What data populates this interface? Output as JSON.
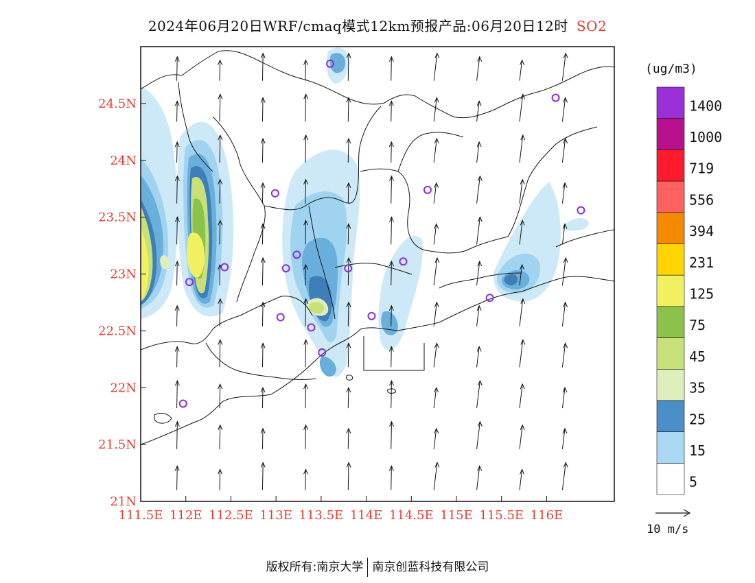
{
  "title": {
    "main": "2024年06月20日WRF/cmaq模式12km预报产品:06月20日12时",
    "pollutant": "SO2"
  },
  "map": {
    "lat_labels": [
      "24.5N",
      "24N",
      "23.5N",
      "23N",
      "22.5N",
      "22N",
      "21.5N",
      "21N"
    ],
    "lon_labels": [
      "111.5E",
      "112E",
      "112.5E",
      "113E",
      "113.5E",
      "114E",
      "114.5E",
      "115E",
      "115.5E",
      "116E"
    ],
    "lat_range": [
      21.0,
      25.0
    ],
    "lon_range": [
      111.5,
      116.75
    ],
    "wind_direction": "southerly (arrows pointing north)",
    "stations": [
      {
        "lon": 113.6,
        "lat": 24.85
      },
      {
        "lon": 116.1,
        "lat": 24.55
      },
      {
        "lon": 112.99,
        "lat": 23.71
      },
      {
        "lon": 114.68,
        "lat": 23.74
      },
      {
        "lon": 116.38,
        "lat": 23.56
      },
      {
        "lon": 113.23,
        "lat": 23.17
      },
      {
        "lon": 112.43,
        "lat": 23.06
      },
      {
        "lon": 113.11,
        "lat": 23.05
      },
      {
        "lon": 113.8,
        "lat": 23.05
      },
      {
        "lon": 114.41,
        "lat": 23.11
      },
      {
        "lon": 112.04,
        "lat": 22.93
      },
      {
        "lon": 115.37,
        "lat": 22.79
      },
      {
        "lon": 113.05,
        "lat": 22.62
      },
      {
        "lon": 114.06,
        "lat": 22.63
      },
      {
        "lon": 113.39,
        "lat": 22.53
      },
      {
        "lon": 113.51,
        "lat": 22.31
      },
      {
        "lon": 111.97,
        "lat": 21.86
      }
    ]
  },
  "colorbar": {
    "unit": "(ug/m3)",
    "labels": [
      "1400",
      "1000",
      "719",
      "556",
      "394",
      "231",
      "125",
      "75",
      "45",
      "35",
      "25",
      "15",
      "5"
    ],
    "colors": [
      "#9b30d9",
      "#b8108c",
      "#ff1a2e",
      "#ff6060",
      "#f58a00",
      "#ffd400",
      "#f0f060",
      "#8bc34a",
      "#c8e07a",
      "#e0eebb",
      "#4a8fc8",
      "#a8d8f2",
      "#ffffff"
    ]
  },
  "wind_ref": {
    "label": "10 m/s"
  },
  "footer": {
    "left": "版权所有:南京大学",
    "right": "南京创蓝科技有限公司"
  }
}
